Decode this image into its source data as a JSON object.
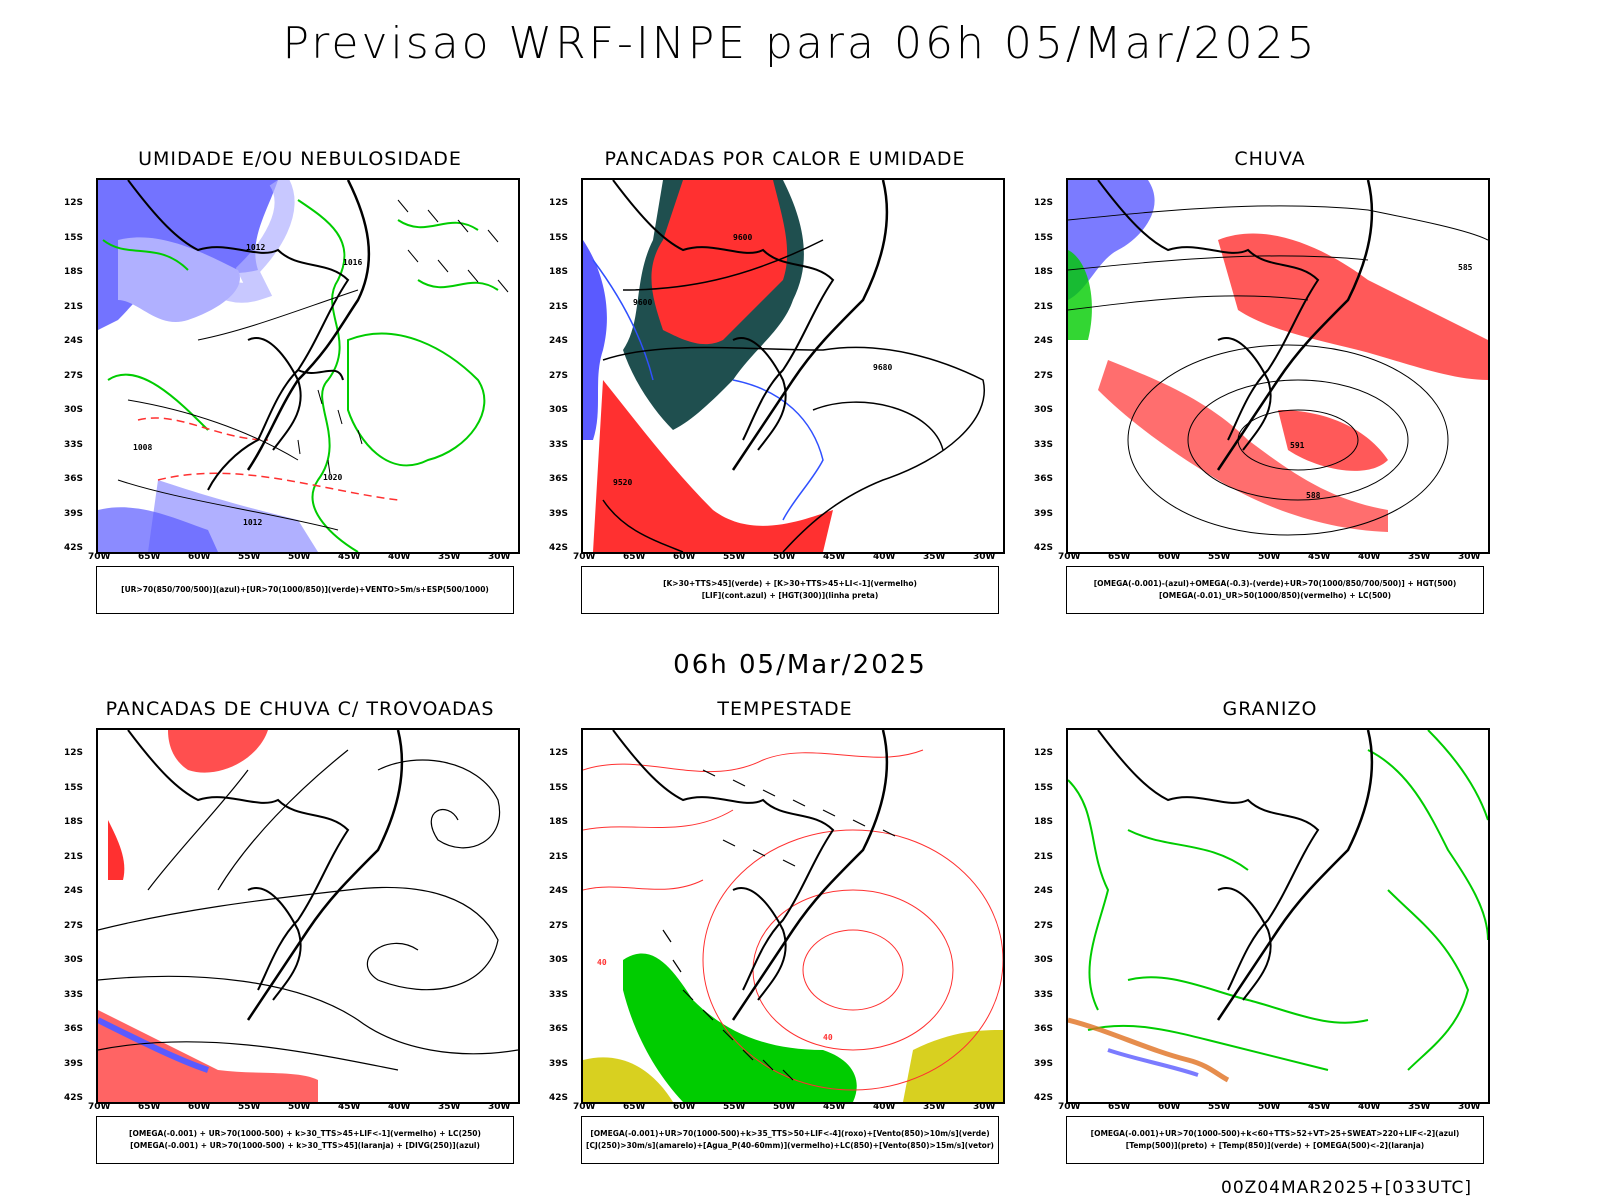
{
  "header": {
    "title": "Previsao WRF-INPE  para 06h 05/Mar/2025"
  },
  "middle": {
    "title": "06h 05/Mar/2025"
  },
  "footer": {
    "text": "00Z04MAR2025+[033UTC]"
  },
  "axes": {
    "lat_labels": [
      "12S",
      "15S",
      "18S",
      "21S",
      "24S",
      "27S",
      "30S",
      "33S",
      "36S",
      "39S",
      "42S"
    ],
    "lon_labels": [
      "70W",
      "65W",
      "60W",
      "55W",
      "50W",
      "45W",
      "40W",
      "35W",
      "30W"
    ]
  },
  "colors": {
    "blue": "#5a5aff",
    "light_blue": "#b0b0ff",
    "green": "#00cc00",
    "red": "#ff3030",
    "dark_teal": "#1f4f4f",
    "orange": "#e07020",
    "yellow": "#d8d020",
    "purple": "#aa00ff"
  },
  "panels": [
    {
      "title": "UMIDADE E/OU NEBULOSIDADE",
      "legend": [
        "[UR>70(850/700/500)](azul)+[UR>70(1000/850)](verde)+VENTO>5m/s+ESP(500/1000)"
      ],
      "contour_labels": [
        "1012",
        "1016",
        "1020",
        "1008",
        "1012"
      ]
    },
    {
      "title": "PANCADAS POR CALOR E UMIDADE",
      "legend": [
        "[K>30+TTS>45](verde)  +  [K>30+TTS>45+LI<-1](vermelho)",
        "[LIF](cont.azul)  +  [HGT(300)](linha preta)"
      ],
      "contour_labels": [
        "9600",
        "9680",
        "9520",
        "9600"
      ]
    },
    {
      "title": "CHUVA",
      "legend": [
        "[OMEGA(-0.001)-(azul)+OMEGA(-0.3)-(verde)+UR>70(1000/850/700/500)]  +  HGT(500)",
        "[OMEGA(-0.01)_UR>50(1000/850)(vermelho)  +  LC(500)"
      ],
      "contour_labels": [
        "591",
        "588",
        "585"
      ]
    },
    {
      "title": "PANCADAS DE CHUVA C/ TROVOADAS",
      "legend": [
        "[OMEGA(-0.001)  +  UR>70(1000-500)  +  k>30_TTS>45+LIF<-1](vermelho)  +  LC(250)",
        "[OMEGA(-0.001)  +  UR>70(1000-500)  +  k>30_TTS>45](laranja)  +  [DIVG(250)](azul)"
      ],
      "contour_labels": []
    },
    {
      "title": "TEMPESTADE",
      "legend": [
        "[OMEGA(-0.001)+UR>70(1000-500)+k>35_TTS>50+LIF<-4](roxo)+[Vento(850)>10m/s](verde)",
        "[CJ(250)>30m/s](amarelo)+[Agua_P(40-60mm)](vermelho)+LC(850)+[Vento(850)>15m/s](vetor)"
      ],
      "contour_labels": [
        "40",
        "40"
      ]
    },
    {
      "title": "GRANIZO",
      "legend": [
        "[OMEGA(-0.001)+UR>70(1000-500)+k<60+TTS>52+VT>25+SWEAT>220+LIF<-2](azul)",
        "[Temp(500)](preto)  +  [Temp(850)](verde)  +  [OMEGA(500)<-2](laranja)"
      ],
      "contour_labels": []
    }
  ]
}
